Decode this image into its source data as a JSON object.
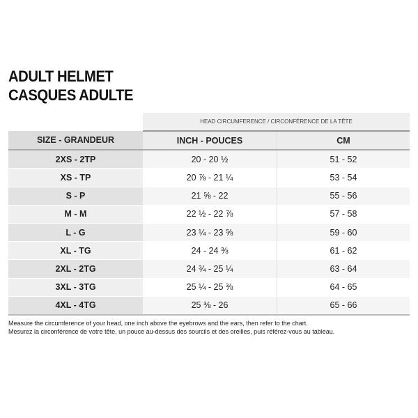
{
  "title": {
    "line1": "ADULT HELMET",
    "line2": "CASQUES ADULTE"
  },
  "table": {
    "group_header": "HEAD CIRCUMFERENCE / CIRCONFÉRENCE DE LA TÊTE",
    "headers": [
      "SIZE - GRANDEUR",
      "INCH - POUCES",
      "CM"
    ],
    "rows": [
      [
        "2XS - 2TP",
        "20 - 20 ½",
        "51 - 52"
      ],
      [
        "XS - TP",
        "20 ⅞ - 21 ¼",
        "53 - 54"
      ],
      [
        "S - P",
        "21 ⅝ - 22",
        "55 - 56"
      ],
      [
        "M - M",
        "22 ½ - 22 ⅞",
        "57 - 58"
      ],
      [
        "L - G",
        "23 ¼ - 23 ⅝",
        "59 - 60"
      ],
      [
        "XL - TG",
        "24 - 24 ⅜",
        "61 - 62"
      ],
      [
        "2XL - 2TG",
        "24 ¾ - 25 ¼",
        "63 - 64"
      ],
      [
        "3XL - 3TG",
        "25 ¼ - 25 ⅜",
        "64 - 65"
      ],
      [
        "4XL - 4TG",
        "25 ⅜ - 26",
        "65 - 66"
      ]
    ]
  },
  "note": {
    "en": "Measure the circumference of your head, one inch above the eyebrows and the ears, then refer to the chart.",
    "fr": "Mesurez la circonférence de votre tête, un pouce au-dessus des sourcils et des oreilles, puis référez-vous au tableau."
  }
}
